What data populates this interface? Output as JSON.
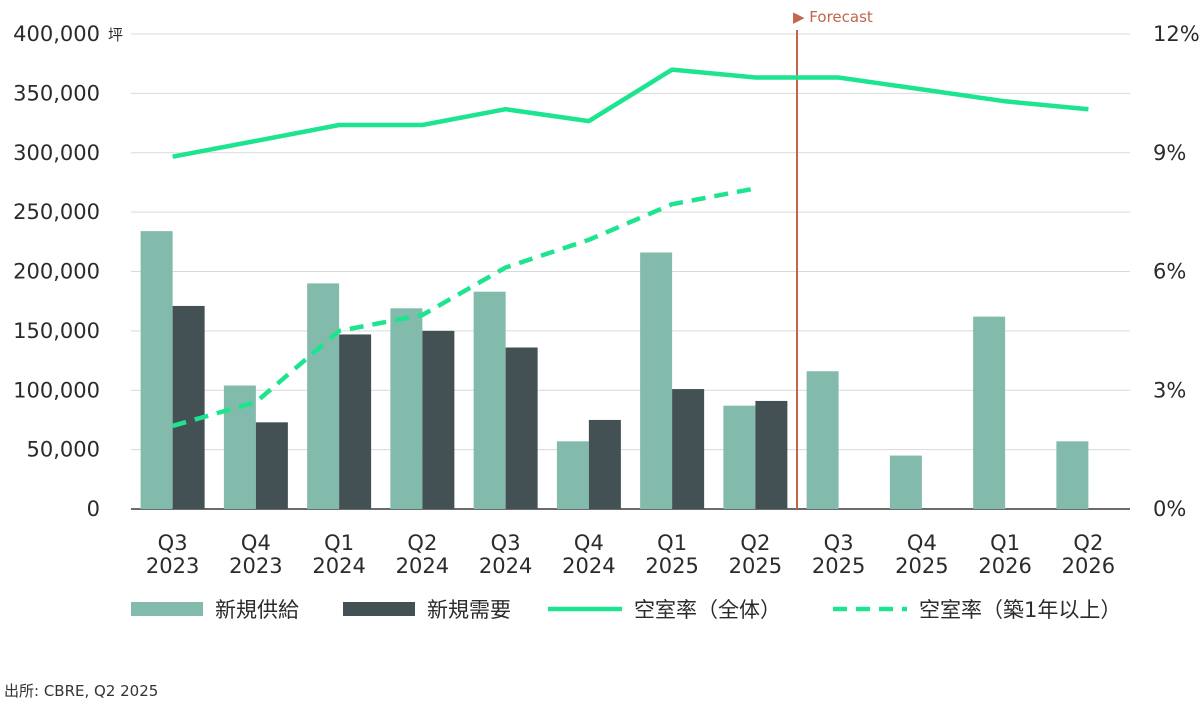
{
  "colors": {
    "supply": "#82bbac",
    "demand": "#435154",
    "vacancy_all": "#1de48f",
    "vacancy_1yr": "#1de48f",
    "forecast": "#c0664a",
    "grid": "#d9d9d9",
    "text": "#2b2b2b"
  },
  "source": "出所: CBRE, Q2 2025",
  "chart_data": {
    "type": "bar",
    "categories": [
      [
        "Q3",
        "2023"
      ],
      [
        "Q4",
        "2023"
      ],
      [
        "Q1",
        "2024"
      ],
      [
        "Q2",
        "2024"
      ],
      [
        "Q3",
        "2024"
      ],
      [
        "Q4",
        "2024"
      ],
      [
        "Q1",
        "2025"
      ],
      [
        "Q2",
        "2025"
      ],
      [
        "Q3",
        "2025"
      ],
      [
        "Q4",
        "2025"
      ],
      [
        "Q1",
        "2026"
      ],
      [
        "Q2",
        "2026"
      ]
    ],
    "left_axis": {
      "unit": "坪",
      "ylim": [
        0,
        400000
      ],
      "ticks": [
        0,
        50000,
        100000,
        150000,
        200000,
        250000,
        300000,
        350000,
        400000
      ],
      "tick_labels": [
        "0",
        "50,000",
        "100,000",
        "150,000",
        "200,000",
        "250,000",
        "300,000",
        "350,000",
        "400,000"
      ]
    },
    "right_axis": {
      "ylim": [
        0,
        12
      ],
      "ticks": [
        0,
        3,
        6,
        9,
        12
      ],
      "tick_labels": [
        "0%",
        "3%",
        "6%",
        "9%",
        "12%"
      ]
    },
    "grid": true,
    "legend_position": "bottom",
    "forecast_marker": {
      "label": "▶ Forecast",
      "after_index": 7
    },
    "series": [
      {
        "name": "新規供給",
        "type": "bar",
        "axis": "left",
        "values": [
          234000,
          104000,
          190000,
          169000,
          183000,
          57000,
          216000,
          87000,
          116000,
          45000,
          162000,
          57000
        ]
      },
      {
        "name": "新規需要",
        "type": "bar",
        "axis": "left",
        "values": [
          171000,
          73000,
          147000,
          150000,
          136000,
          75000,
          101000,
          91000,
          null,
          null,
          null,
          null
        ]
      },
      {
        "name": "空室率（全体）",
        "type": "line",
        "axis": "right",
        "style": "solid",
        "values": [
          8.9,
          9.3,
          9.7,
          9.7,
          10.1,
          9.8,
          11.1,
          10.9,
          10.9,
          10.6,
          10.3,
          10.1
        ]
      },
      {
        "name": "空室率（築1年以上）",
        "type": "line",
        "axis": "right",
        "style": "dashed",
        "values": [
          2.1,
          2.7,
          4.5,
          4.9,
          6.1,
          6.8,
          7.7,
          8.1,
          null,
          null,
          null,
          null
        ]
      }
    ]
  }
}
